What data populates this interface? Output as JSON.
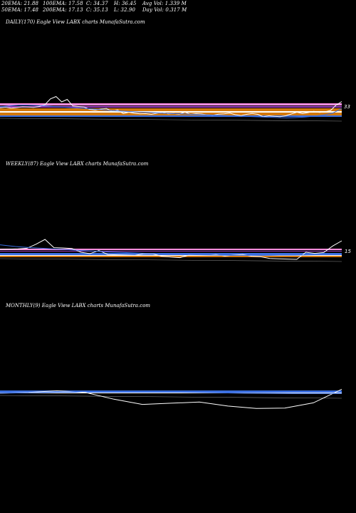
{
  "header": {
    "row1": [
      "20EMA: 21.88",
      "100EMA: 17.58",
      "C: 34.37",
      "H: 36.45",
      "Avg Vol: 1.339 M"
    ],
    "row2": [
      "50EMA: 17.48",
      "200EMA: 17.13",
      "C: 35.13",
      "L: 32.90",
      "Day Vol: 0.317 M"
    ]
  },
  "chart_data": [
    {
      "type": "line",
      "title": "DAILY(170) Eagle View LABX charts MunafaSutra.com",
      "price_label": "33",
      "series": [
        {
          "color": "#ffffff",
          "values": [
            33.5,
            33.8,
            33.3,
            33.6,
            34.0,
            33.9,
            33.7,
            34.2,
            35.2,
            38.5,
            39.8,
            36.8,
            38.2,
            34.5,
            34.2,
            33.9,
            32.6,
            32.2,
            32.8,
            33.1,
            31.5,
            32.3,
            30.2,
            31.0,
            30.4,
            30.1,
            30.2,
            29.8,
            30.4,
            31.0,
            30.1,
            30.3,
            29.9,
            31.1,
            29.8,
            30.2,
            30.0,
            29.5,
            29.3,
            29.9,
            30.1,
            30.5,
            29.6,
            29.1,
            29.8,
            30.3,
            29.8,
            28.5,
            29.0,
            28.7,
            28.5,
            29.0,
            30.0,
            31.0,
            30.2,
            30.8,
            31.5,
            30.9,
            31.2,
            32.0,
            35.0,
            37.0
          ]
        },
        {
          "color": "#3a6ee0",
          "values": [
            34.0,
            34.6,
            35.0,
            35.0,
            34.8,
            34.5,
            34.1,
            33.8,
            33.5,
            33.2,
            32.8,
            32.4,
            32.0,
            31.7,
            31.4,
            31.1,
            30.9,
            30.6,
            30.4,
            30.2,
            30.0,
            29.8,
            29.6,
            29.4,
            29.2,
            29.0,
            28.8,
            28.6,
            28.4,
            28.2,
            28.0,
            27.8,
            28.0,
            28.3,
            28.8,
            29.4,
            30.5,
            33.0
          ]
        }
      ]
    },
    {
      "type": "line",
      "title": "WEEKLY(87) Eagle View LABX charts MunafaSutra.com",
      "price_label": "15",
      "series": [
        {
          "color": "#ffffff",
          "values": [
            15.0,
            15.1,
            15.2,
            15.4,
            16.8,
            18.5,
            15.6,
            15.5,
            15.3,
            14.0,
            13.5,
            14.6,
            13.2,
            13.1,
            13.0,
            12.9,
            13.5,
            13.4,
            12.6,
            12.3,
            12.1,
            13.0,
            13.1,
            12.9,
            13.2,
            12.7,
            13.0,
            13.2,
            12.6,
            12.4,
            11.8,
            11.7,
            11.6,
            11.5,
            14.0,
            13.6,
            13.9,
            16.2,
            18.0
          ]
        },
        {
          "color": "#3a6ee0",
          "values": [
            16.6,
            16.0,
            15.6,
            15.3,
            15.0,
            14.7,
            14.4,
            14.1,
            13.9,
            13.7,
            13.5,
            13.3,
            13.2,
            13.1,
            13.0,
            12.9,
            12.9,
            12.9,
            13.0,
            13.0,
            13.1,
            13.2,
            13.6
          ]
        }
      ]
    },
    {
      "type": "line",
      "title": "MONTHLY(9) Eagle View LABX charts MunafaSutra.com",
      "price_label": "",
      "series": [
        {
          "color": "#ffffff",
          "values": [
            37.0,
            37.2,
            37.6,
            37.2,
            35.5,
            34.2,
            34.5,
            34.8,
            33.8,
            33.2,
            33.3,
            34.6,
            38.0
          ]
        },
        {
          "color": "#3a6ee0",
          "values": [
            37.0,
            37.2,
            37.5,
            37.4,
            37.2,
            37.0,
            36.9,
            36.9
          ]
        }
      ]
    }
  ]
}
